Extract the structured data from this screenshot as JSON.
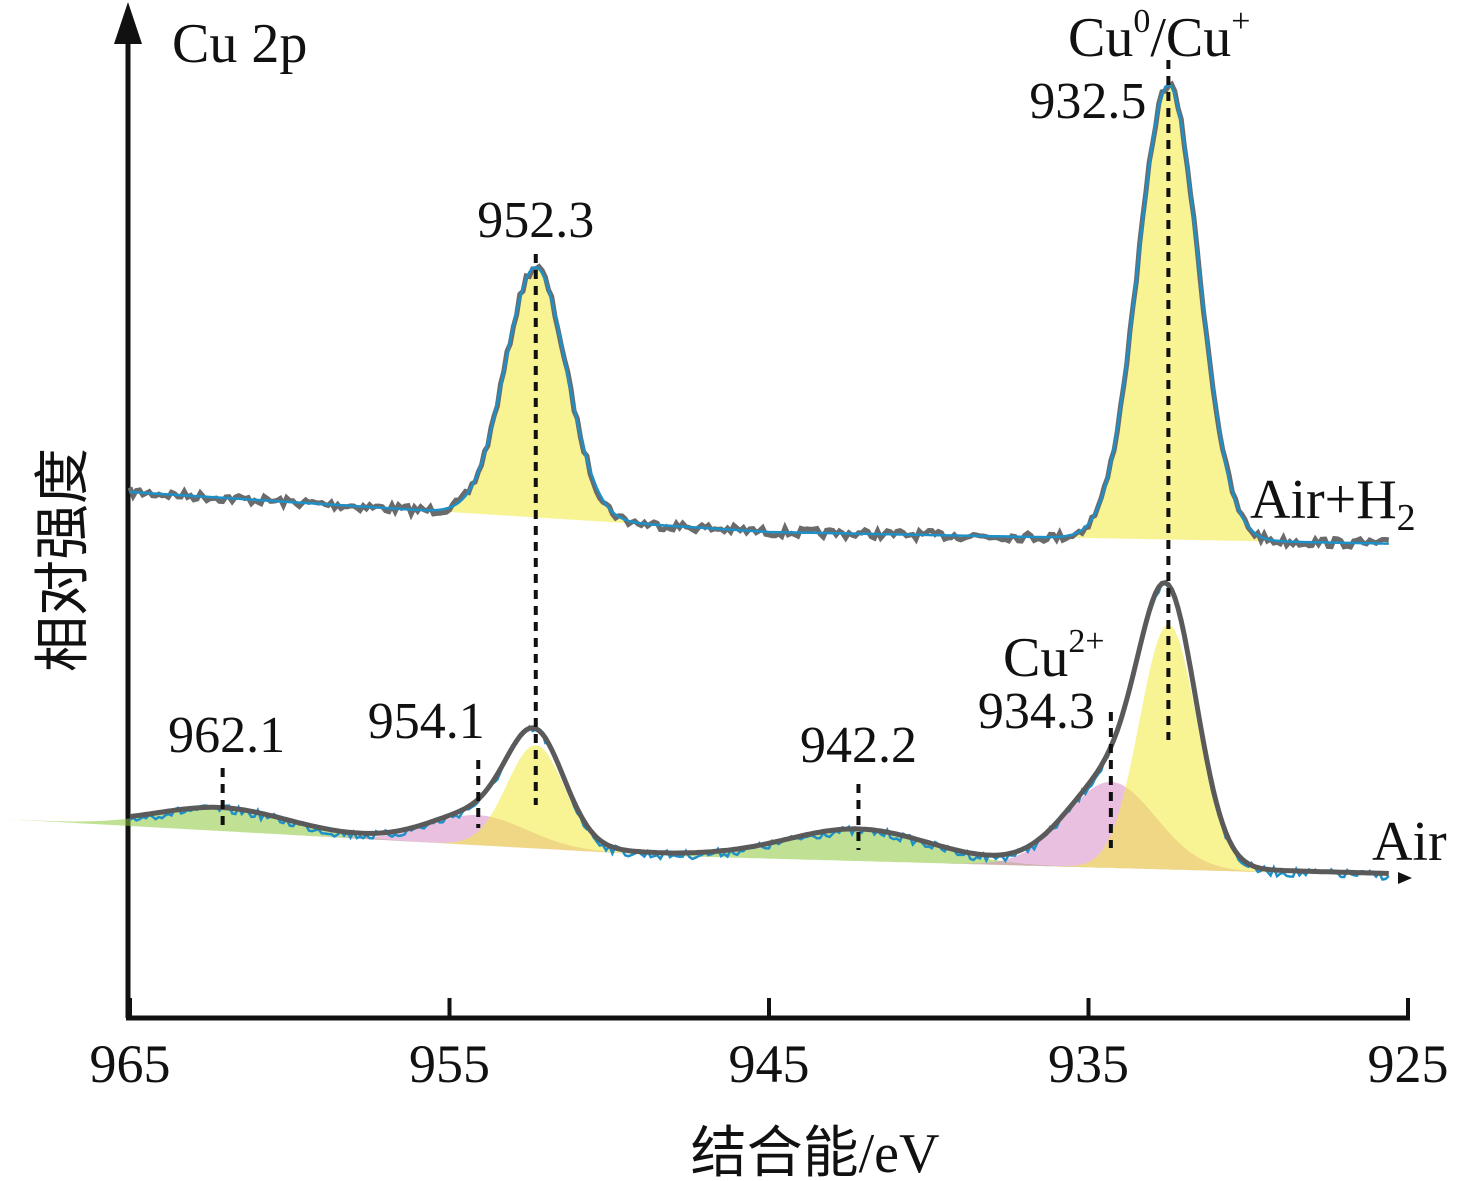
{
  "chart_data": {
    "type": "line",
    "title": "Cu 2p",
    "xlabel": "结合能/eV",
    "ylabel": "相对强度",
    "x_reversed": true,
    "xlim": [
      965,
      925
    ],
    "x_ticks": [
      965,
      955,
      945,
      935,
      925
    ],
    "y_ticks": "none",
    "colors": {
      "measured": "#6b6b6b",
      "fit_envelope": "#5a5a5a",
      "fit_line": "#1e90c8",
      "yellow_peak": "#f2ea3a",
      "pink_peak": "#d98cc8",
      "green_peak": "#8cc83c"
    },
    "series": [
      {
        "name": "Air+H2",
        "label_text": "Air+H",
        "label_sub": "2",
        "components": [
          {
            "center": 952.3,
            "amplitude": 0.55,
            "width": 0.95,
            "color": "yellow"
          },
          {
            "center": 932.5,
            "amplitude": 1.0,
            "width": 0.95,
            "color": "yellow"
          }
        ]
      },
      {
        "name": "Air",
        "label_text": "Air",
        "components": [
          {
            "center": 962.1,
            "amplitude": 0.05,
            "width": 2.0,
            "color": "green"
          },
          {
            "center": 954.1,
            "amplitude": 0.07,
            "width": 1.5,
            "color": "pink"
          },
          {
            "center": 952.3,
            "amplitude": 0.24,
            "width": 0.9,
            "color": "yellow"
          },
          {
            "center": 942.2,
            "amplitude": 0.07,
            "width": 2.2,
            "color": "green"
          },
          {
            "center": 934.3,
            "amplitude": 0.2,
            "width": 1.4,
            "color": "pink"
          },
          {
            "center": 932.5,
            "amplitude": 0.57,
            "width": 0.9,
            "color": "yellow"
          }
        ]
      }
    ],
    "annotations": [
      {
        "text": "952.3",
        "x": 952.3
      },
      {
        "text": "932.5",
        "x": 932.5
      },
      {
        "text": "962.1",
        "x": 962.1
      },
      {
        "text": "954.1",
        "x": 954.1
      },
      {
        "text": "942.2",
        "x": 942.2
      },
      {
        "text": "934.3",
        "x": 934.3
      }
    ],
    "species_labels": {
      "cu0_cu_plus": {
        "base1": "Cu",
        "sup1": "0",
        "mid": "/Cu",
        "sup2": "+"
      },
      "cu2_plus": {
        "base": "Cu",
        "sup": "2+"
      }
    }
  }
}
